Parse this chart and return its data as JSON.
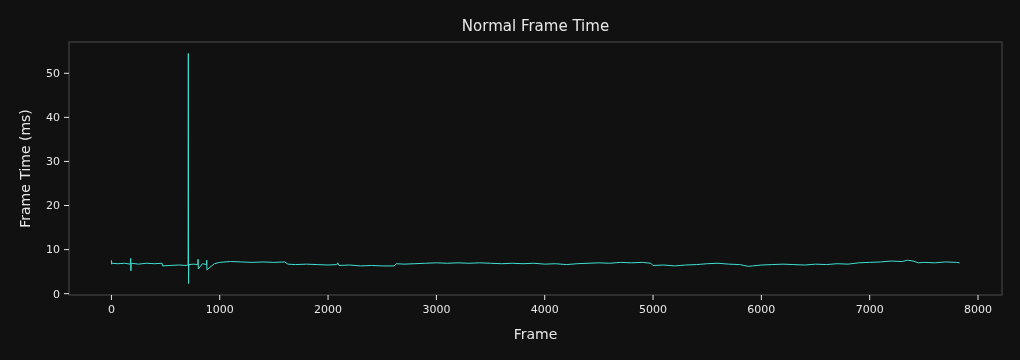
{
  "chart_data": {
    "type": "line",
    "title": "Normal Frame Time",
    "xlabel": "Frame",
    "ylabel": "Frame Time (ms)",
    "xlim": [
      -391.5,
      8221.5
    ],
    "ylim": [
      -0.3,
      57.1
    ],
    "xticks": [
      0,
      1000,
      2000,
      3000,
      4000,
      5000,
      6000,
      7000,
      8000
    ],
    "yticks": [
      0,
      10,
      20,
      30,
      40,
      50
    ],
    "grid": false,
    "series": [
      {
        "color": "#40e0d0",
        "x": [
          0,
          1,
          2,
          60,
          120,
          175,
          178,
          180,
          182,
          185,
          250,
          320,
          400,
          468,
          472,
          540,
          620,
          700,
          706,
          708,
          710,
          712,
          714,
          760,
          798,
          800,
          802,
          840,
          878,
          880,
          882,
          950,
          1000,
          1100,
          1200,
          1300,
          1400,
          1500,
          1600,
          1630,
          1700,
          1800,
          1900,
          2000,
          2080,
          2090,
          2100,
          2200,
          2300,
          2400,
          2500,
          2610,
          2630,
          2700,
          2800,
          2900,
          3000,
          3100,
          3200,
          3300,
          3400,
          3500,
          3600,
          3700,
          3800,
          3900,
          4000,
          4100,
          4200,
          4300,
          4400,
          4500,
          4600,
          4700,
          4800,
          4900,
          4980,
          5000,
          5100,
          5200,
          5300,
          5400,
          5500,
          5600,
          5700,
          5800,
          5880,
          5920,
          6000,
          6100,
          6200,
          6300,
          6400,
          6500,
          6600,
          6700,
          6800,
          6900,
          7000,
          7100,
          7200,
          7300,
          7350,
          7400,
          7450,
          7500,
          7600,
          7700,
          7800,
          7830
        ],
        "values": [
          7.6,
          6.7,
          6.9,
          6.8,
          6.9,
          6.7,
          8.0,
          5.2,
          6.8,
          6.9,
          6.7,
          6.9,
          6.8,
          6.9,
          6.3,
          6.4,
          6.5,
          6.4,
          6.6,
          6.5,
          54.5,
          2.3,
          6.6,
          6.7,
          6.6,
          7.8,
          5.6,
          6.8,
          6.6,
          7.6,
          5.4,
          6.8,
          7.1,
          7.3,
          7.2,
          7.1,
          7.2,
          7.1,
          7.2,
          6.7,
          6.6,
          6.7,
          6.6,
          6.5,
          6.6,
          7.0,
          6.4,
          6.5,
          6.3,
          6.4,
          6.3,
          6.3,
          6.8,
          6.7,
          6.8,
          6.9,
          7.0,
          6.9,
          7.0,
          6.9,
          7.0,
          6.9,
          6.8,
          6.9,
          6.8,
          6.9,
          6.7,
          6.8,
          6.6,
          6.8,
          6.9,
          7.0,
          6.9,
          7.1,
          7.0,
          7.1,
          6.9,
          6.4,
          6.5,
          6.3,
          6.5,
          6.6,
          6.8,
          6.9,
          6.7,
          6.6,
          6.2,
          6.3,
          6.5,
          6.6,
          6.7,
          6.6,
          6.5,
          6.7,
          6.6,
          6.8,
          6.7,
          7.0,
          7.1,
          7.2,
          7.4,
          7.3,
          7.6,
          7.4,
          7.0,
          7.1,
          7.0,
          7.2,
          7.1,
          7.0
        ]
      }
    ]
  }
}
